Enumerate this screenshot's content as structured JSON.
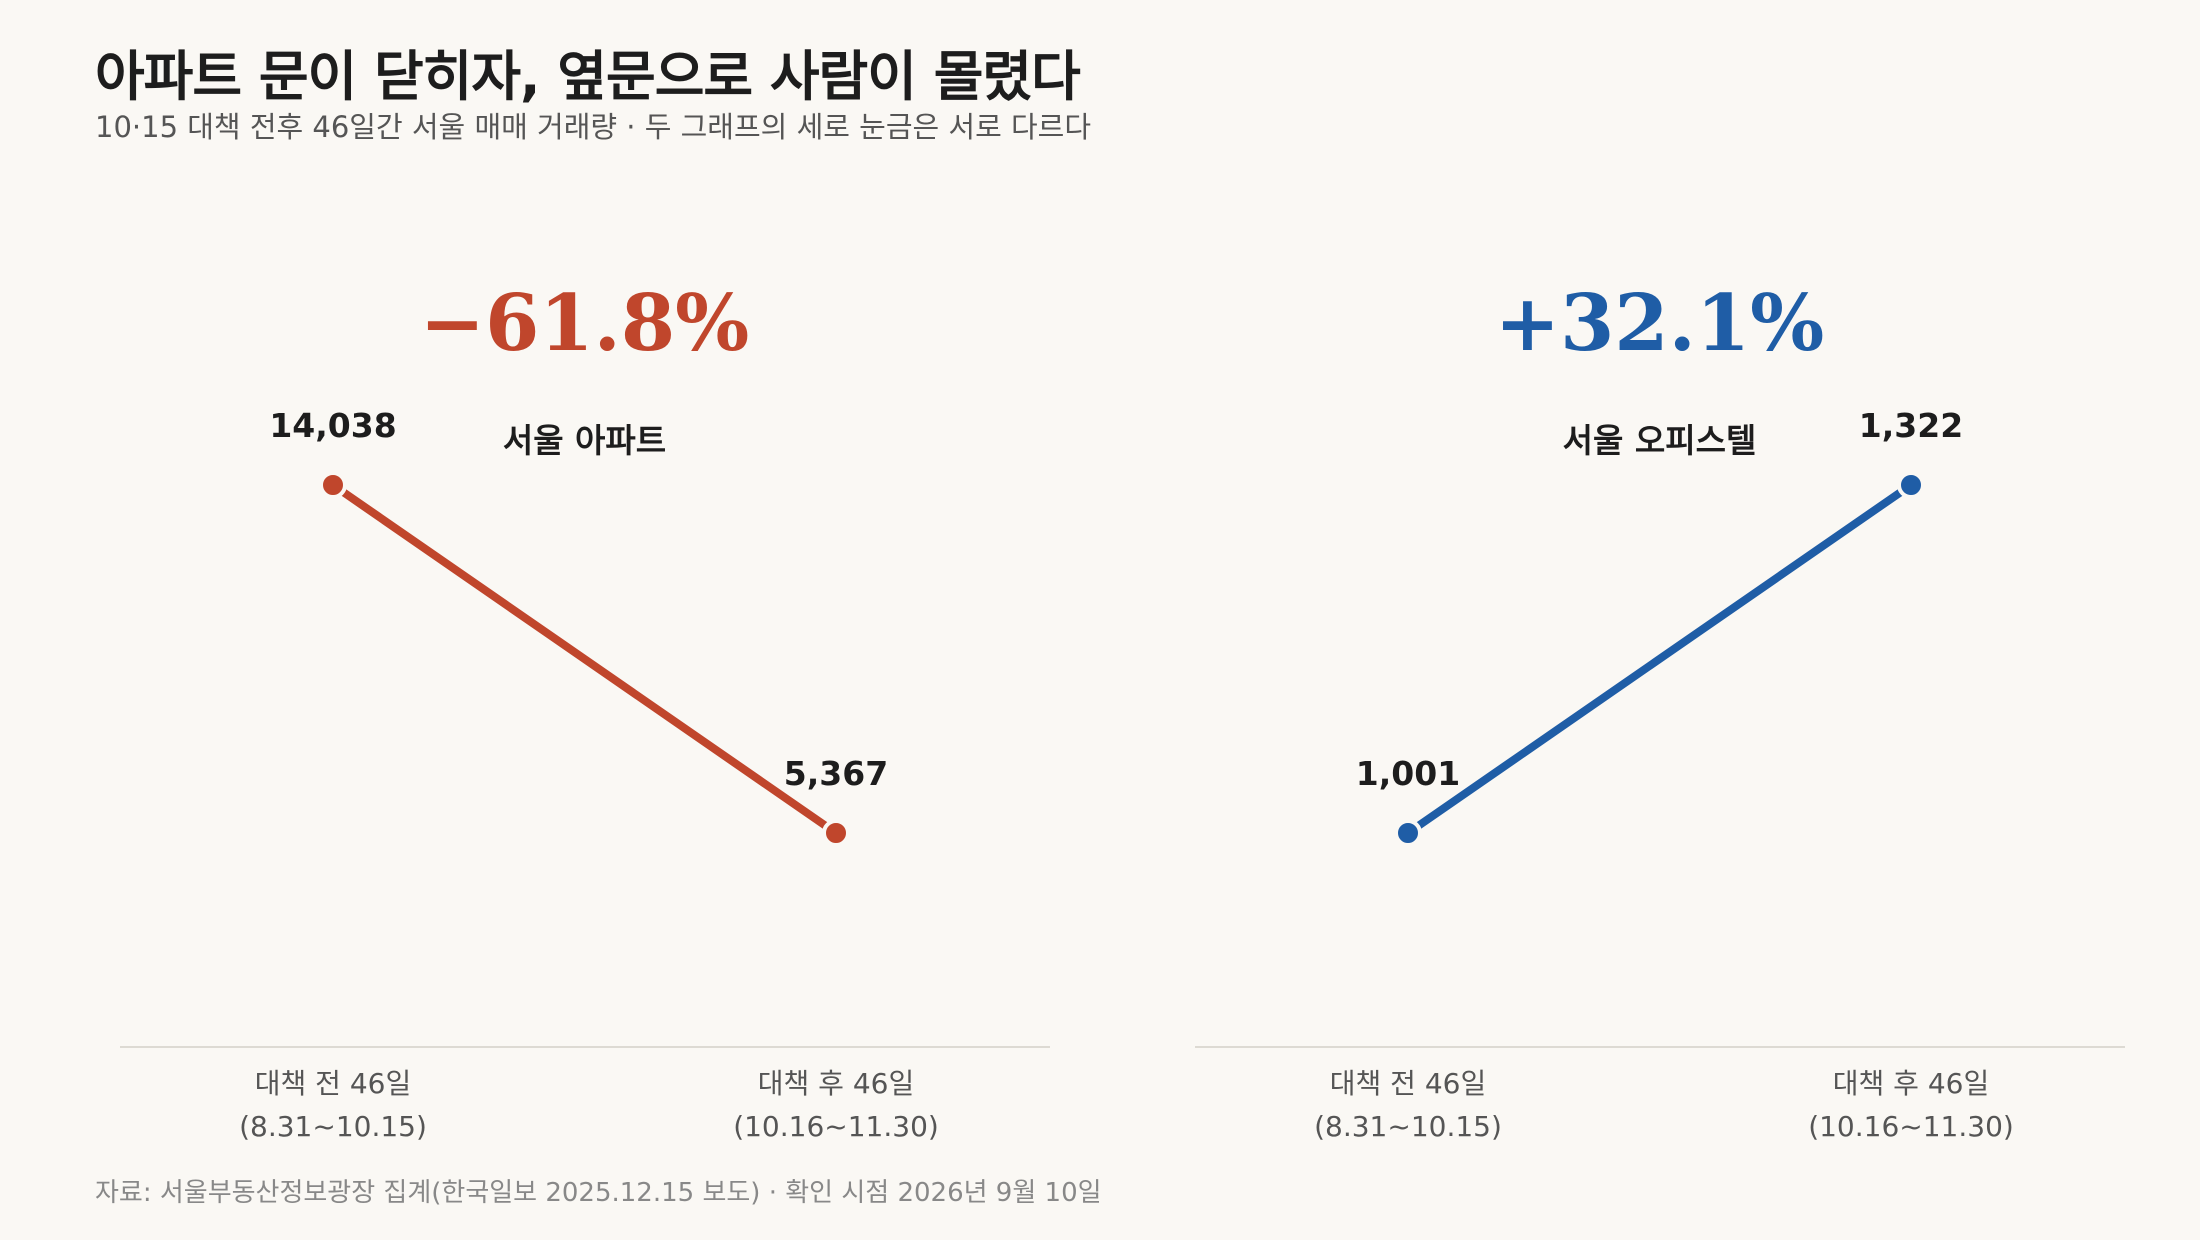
{
  "title": "아파트 문이 닫히자, 옆문으로 사람이 몰렸다",
  "subtitle": "10·15 대책 전후 46일간 서울 매매 거래량 · 두 그래프의 세로 눈금은 서로 다르다",
  "source": "자료: 서울부동산정보광장 집계(한국일보 2025.12.15 보도) · 확인 시점 2026년 9월 10일",
  "chart_data": [
    {
      "type": "line",
      "series": [
        {
          "name": "서울 아파트",
          "values": [
            14038,
            5367
          ]
        }
      ],
      "categories": [
        "대책 전 46일",
        "대책 후 46일"
      ],
      "category_sub": [
        "(8.31~10.15)",
        "(10.16~11.30)"
      ],
      "value_labels": [
        "14,038",
        "5,367"
      ],
      "change_label": "−61.8%",
      "color": "#c0462c",
      "ylim": [
        0,
        18000
      ],
      "grid": false
    },
    {
      "type": "line",
      "series": [
        {
          "name": "서울 오피스텔",
          "values": [
            1001,
            1322
          ]
        }
      ],
      "categories": [
        "대책 전 46일",
        "대책 후 46일"
      ],
      "category_sub": [
        "(8.31~10.15)",
        "(10.16~11.30)"
      ],
      "value_labels": [
        "1,001",
        "1,322"
      ],
      "change_label": "+32.1%",
      "color": "#1f5da6",
      "ylim": [
        0,
        1700
      ],
      "grid": false
    }
  ]
}
